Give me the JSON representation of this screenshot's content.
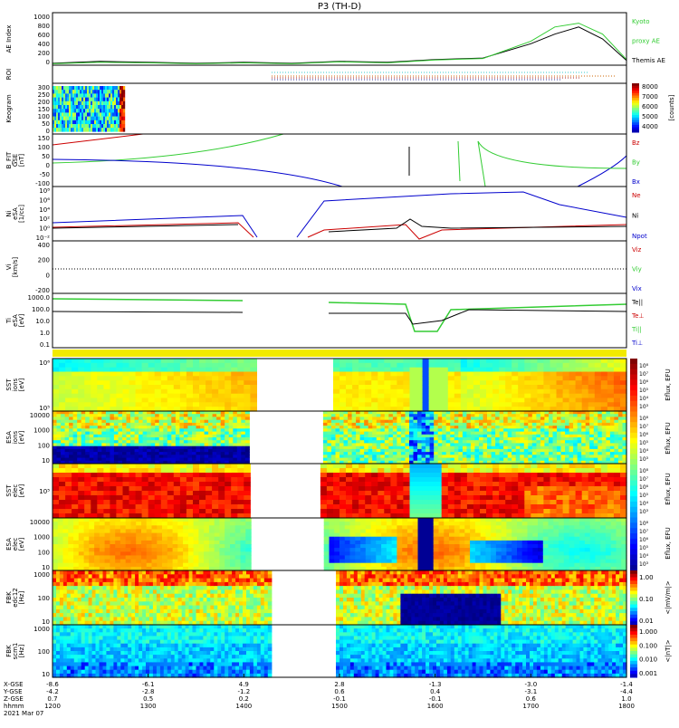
{
  "title": "P3 (TH-D)",
  "panels": [
    {
      "id": "ae",
      "ylabel": "AE Index",
      "yticks": [
        "1000",
        "800",
        "600",
        "400",
        "200",
        "0"
      ],
      "legend": [
        {
          "text": "Kyoto",
          "color": "#33cc33"
        },
        {
          "text": "proxy AE",
          "color": "#33cc33"
        },
        {
          "text": "Themis AE",
          "color": "#000000"
        }
      ]
    },
    {
      "id": "roi",
      "ylabel": "ROI",
      "yticks": [],
      "legend": []
    },
    {
      "id": "keogram",
      "ylabel": "Keogram",
      "yticks": [
        "300",
        "250",
        "200",
        "150",
        "100",
        "50",
        "0"
      ],
      "colorbar": {
        "ticks": [
          "8000",
          "7000",
          "6000",
          "5000",
          "4000"
        ],
        "label": "[counts]"
      }
    },
    {
      "id": "bfit",
      "ylabel": "B_FIT",
      "ylabel2": "GSE",
      "ylabel3": "[nT]",
      "yticks": [
        "150",
        "100",
        "50",
        "0",
        "-50",
        "-100"
      ],
      "legend": [
        {
          "text": "Bz",
          "color": "#cc0000"
        },
        {
          "text": "By",
          "color": "#33cc33"
        },
        {
          "text": "Bx",
          "color": "#0000cc"
        }
      ]
    },
    {
      "id": "ni",
      "ylabel": "Ni",
      "ylabel2": "eSA",
      "ylabel3": "[1/cc]",
      "yticks": [
        "10⁸",
        "10⁶",
        "10⁴",
        "10²",
        "10⁰",
        "10⁻²"
      ],
      "legend": [
        {
          "text": "Ne",
          "color": "#cc0000"
        },
        {
          "text": "Ni",
          "color": "#000000"
        },
        {
          "text": "Npot",
          "color": "#0000cc"
        }
      ]
    },
    {
      "id": "vi",
      "ylabel": "Vi",
      "ylabel2": "[km/s]",
      "yticks": [
        "400",
        "200",
        "0",
        "-200"
      ],
      "legend": [
        {
          "text": "Viz",
          "color": "#cc0000"
        },
        {
          "text": "Viy",
          "color": "#33cc33"
        },
        {
          "text": "Vix",
          "color": "#0000cc"
        }
      ]
    },
    {
      "id": "ti",
      "ylabel": "Ti",
      "ylabel2": "eSA",
      "ylabel3": "[eV]",
      "yticks": [
        "1000.0",
        "100.0",
        "10.0",
        "1.0",
        "0.1"
      ],
      "legend": [
        {
          "text": "Te||",
          "color": "#000000"
        },
        {
          "text": "Te⊥",
          "color": "#cc0000"
        },
        {
          "text": "Ti||",
          "color": "#33cc33"
        },
        {
          "text": "Ti⊥",
          "color": "#0000cc"
        }
      ]
    },
    {
      "id": "sst_i",
      "ylabel": "SST",
      "ylabel2": "ions",
      "ylabel3": "[eV]",
      "yticks": [
        "10⁶",
        "10⁵"
      ]
    },
    {
      "id": "esa_i",
      "ylabel": "ESA",
      "ylabel2": "ions",
      "ylabel3": "[eV]",
      "yticks": [
        "10000",
        "1000",
        "100",
        "10"
      ]
    },
    {
      "id": "sst_e",
      "ylabel": "SST",
      "ylabel2": "elec",
      "ylabel3": "[eV]",
      "yticks": [
        "10⁵"
      ]
    },
    {
      "id": "esa_e",
      "ylabel": "ESA",
      "ylabel2": "elec",
      "ylabel3": "[eV]",
      "yticks": [
        "10000",
        "1000",
        "100",
        "10"
      ]
    },
    {
      "id": "fbk_e",
      "ylabel": "FBK",
      "ylabel2": "edc12",
      "ylabel3": "[Hz]",
      "yticks": [
        "1000",
        "100",
        "10"
      ]
    },
    {
      "id": "fbk_b",
      "ylabel": "FBK",
      "ylabel2": "scm1",
      "ylabel3": "[Hz]",
      "yticks": [
        "1000",
        "100",
        "10"
      ]
    }
  ],
  "efflux_colorbar": {
    "ticks": [
      "10⁸",
      "10⁷",
      "10⁶",
      "10⁵",
      "10⁴",
      "10³"
    ],
    "label": "Eflux, EFU"
  },
  "fbk_e_colorbar": {
    "ticks": [
      "1.00",
      "0.10",
      "0.01"
    ],
    "label": "<|mV/m|>"
  },
  "fbk_b_colorbar": {
    "ticks": [
      "1.000",
      "0.100",
      "0.010",
      "0.001"
    ],
    "label": "<|nT|>"
  },
  "xaxis": {
    "row_labels": [
      "X-GSE",
      "Y-GSE",
      "Z-GSE",
      "hhmm",
      "2021 Mar 07"
    ],
    "ticks": [
      {
        "x": "-8.6",
        "y": "-4.2",
        "z": "0.7",
        "t": "1200"
      },
      {
        "x": "-6.1",
        "y": "-2.8",
        "z": "0.5",
        "t": "1300"
      },
      {
        "x": "4.9",
        "y": "-1.2",
        "z": "0.2",
        "t": "1400"
      },
      {
        "x": "2.8",
        "y": "0.6",
        "z": "-0.1",
        "t": "1500"
      },
      {
        "x": "-1.3",
        "y": "0.4",
        "z": "-0.1",
        "t": "1600"
      },
      {
        "x": "-3.0",
        "y": "-3.1",
        "z": "0.6",
        "t": "1700"
      },
      {
        "x": "-1.4",
        "y": "-4.4",
        "z": "1.0",
        "t": "1800"
      }
    ]
  },
  "chart_data": {
    "type": "line",
    "title": "P3 (TH-D)",
    "x_unit": "hhmm",
    "x_range": [
      "1200",
      "1800"
    ],
    "ae_series": [
      {
        "name": "Themis AE",
        "x": [
          1200,
          1230,
          1300,
          1330,
          1400,
          1430,
          1500,
          1530,
          1600,
          1630,
          1700,
          1715,
          1730,
          1745,
          1800
        ],
        "values": [
          40,
          80,
          60,
          40,
          60,
          40,
          80,
          60,
          120,
          150,
          450,
          650,
          800,
          550,
          100
        ]
      },
      {
        "name": "Kyoto proxy AE",
        "x": [
          1200,
          1230,
          1300,
          1330,
          1400,
          1430,
          1500,
          1530,
          1600,
          1630,
          1700,
          1715,
          1730,
          1745,
          1800
        ],
        "values": [
          30,
          60,
          50,
          30,
          50,
          30,
          70,
          50,
          110,
          140,
          500,
          800,
          880,
          650,
          120
        ]
      }
    ],
    "ae_ylim": [
      0,
      1100
    ]
  }
}
